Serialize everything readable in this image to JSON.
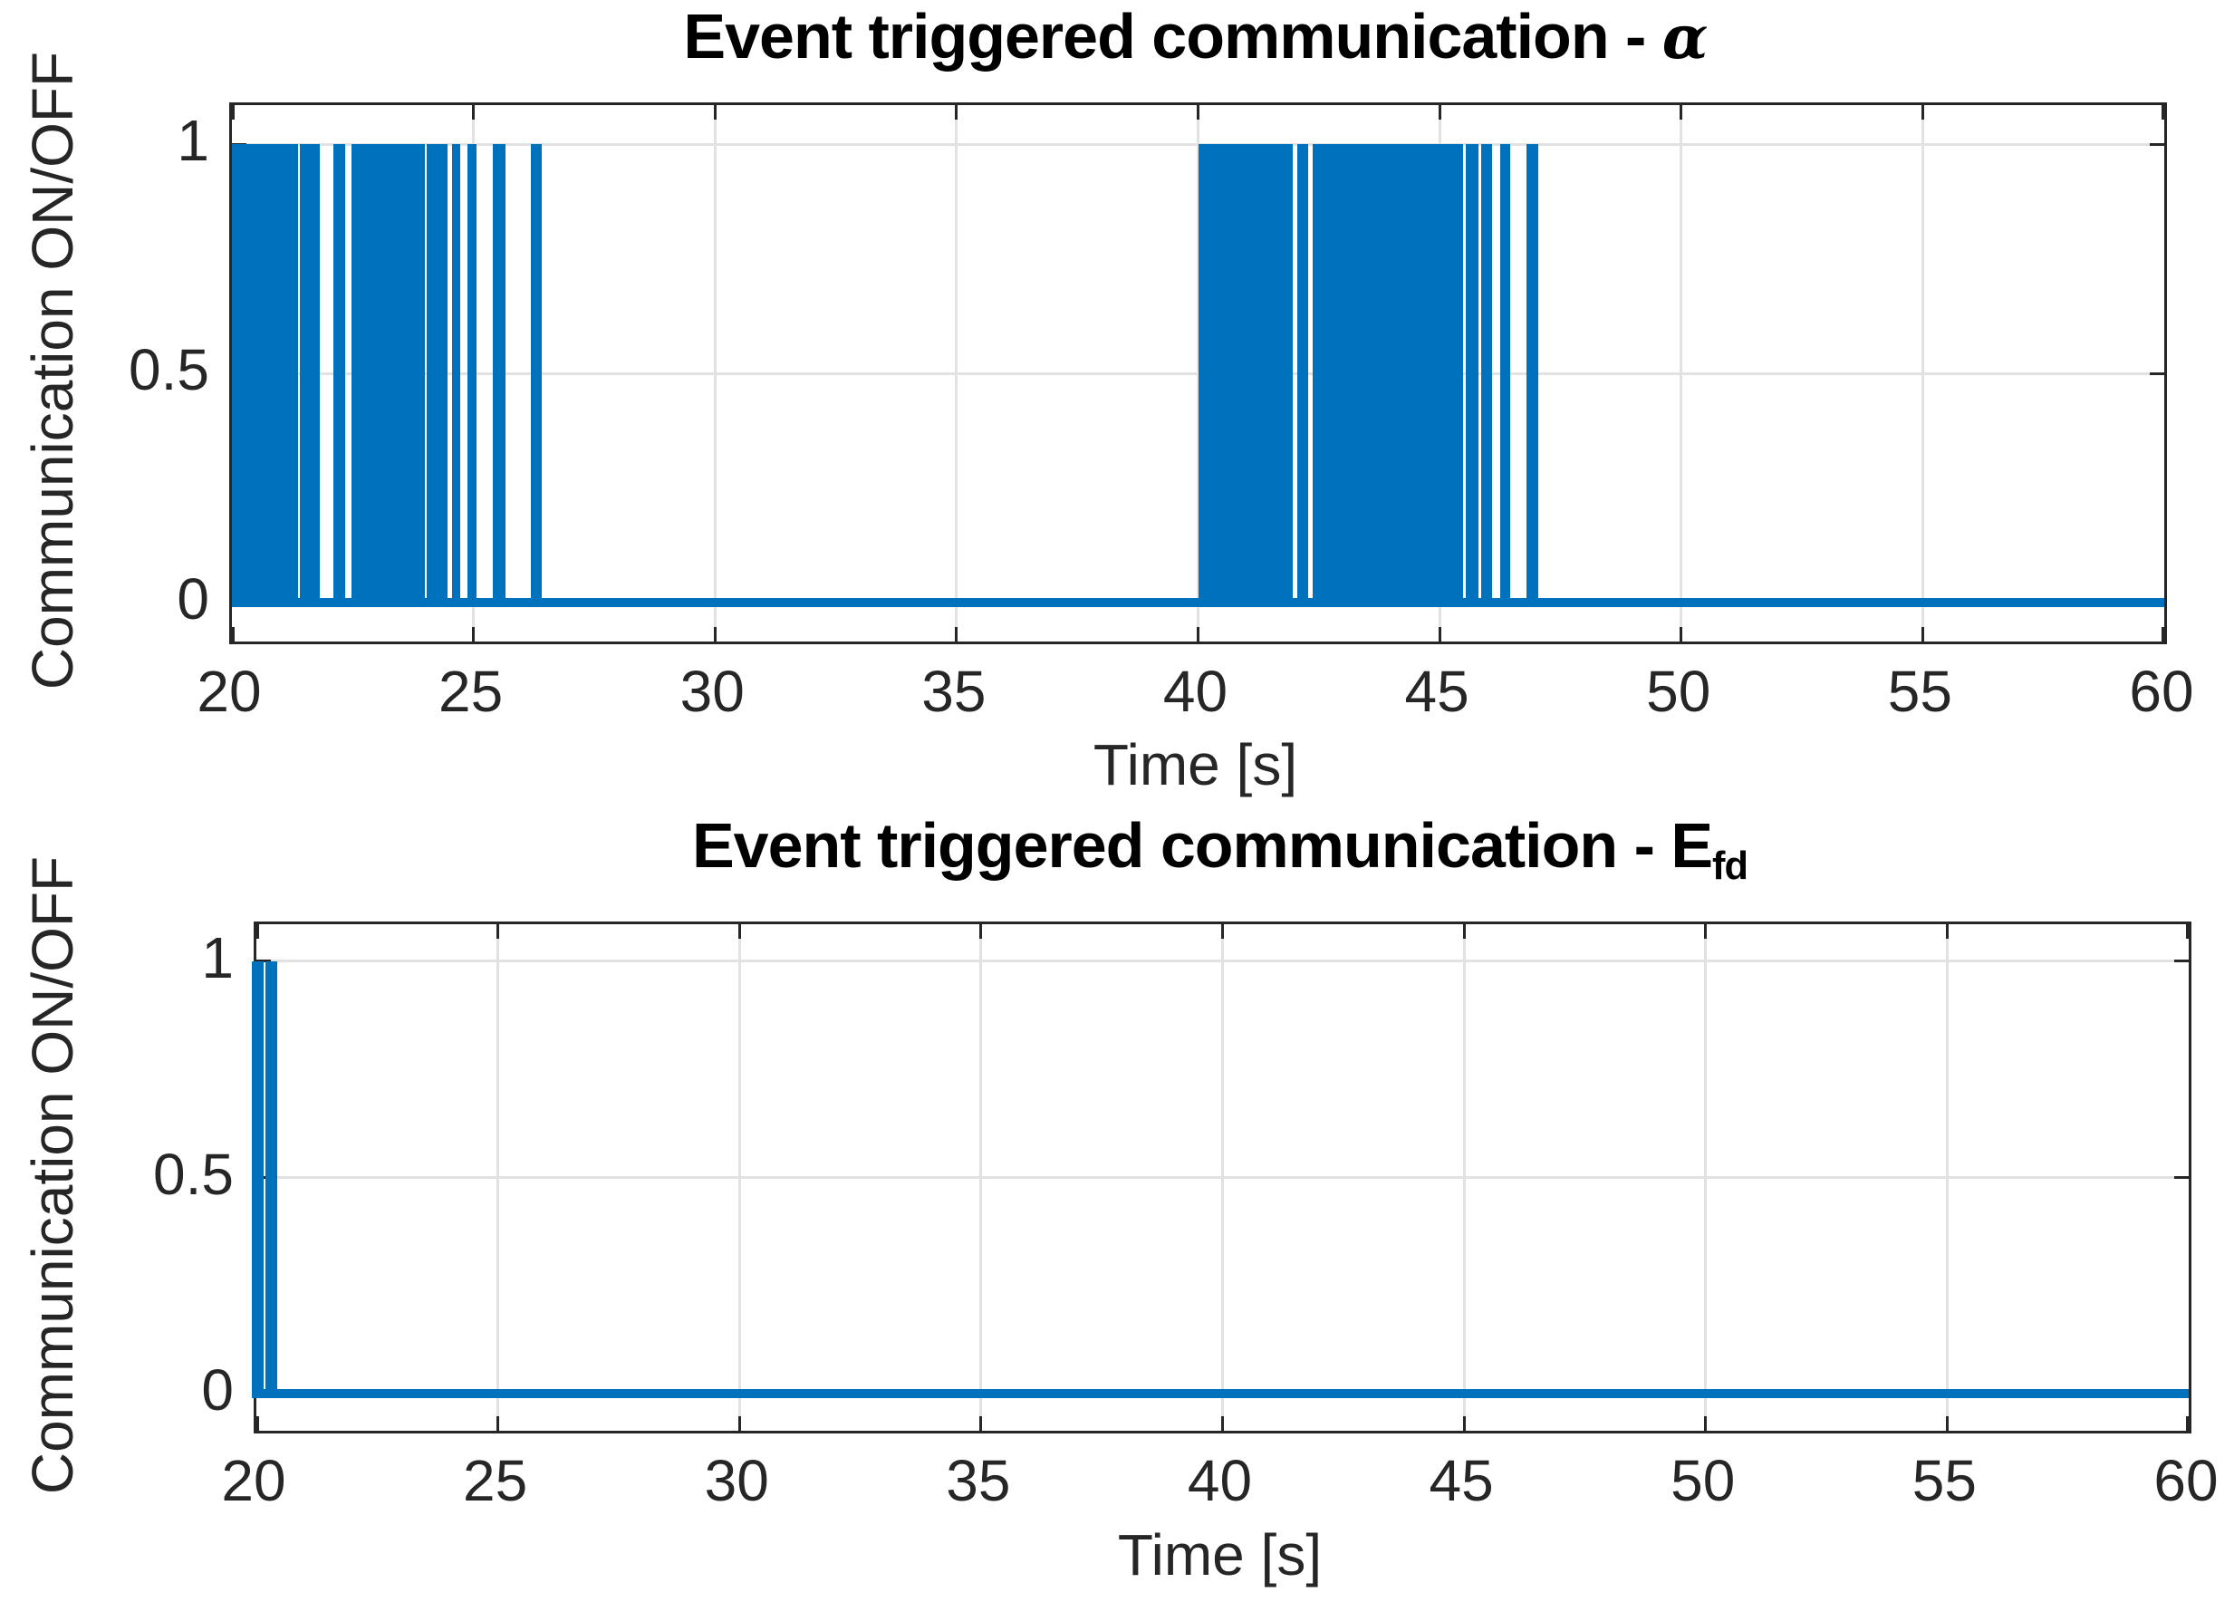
{
  "figure": {
    "background": "#ffffff"
  },
  "colors": {
    "line": "#0072BD",
    "grid": "#e2e2e2",
    "axis": "#262626",
    "tick_text": "#262626",
    "title_text": "#000000"
  },
  "chart_data": [
    {
      "type": "line",
      "subtype": "binary-pulse-train",
      "title": "Event triggered communication - α",
      "title_text": "Event triggered communication - ",
      "title_symbol": "α",
      "xlabel": "Time [s]",
      "ylabel": "Communication ON/OFF",
      "xlim": [
        20,
        60
      ],
      "ylim": [
        -0.085,
        1.085
      ],
      "xticks": [
        20,
        25,
        30,
        35,
        40,
        45,
        50,
        55,
        60
      ],
      "xtick_labels": [
        "20",
        "25",
        "30",
        "35",
        "40",
        "45",
        "50",
        "55",
        "60"
      ],
      "yticks": [
        0,
        0.5,
        1
      ],
      "ytick_labels": [
        "0",
        "0.5",
        "1"
      ],
      "grid": true,
      "value_on": 1,
      "value_off": 0,
      "on_intervals": [
        [
          20.0,
          21.37
        ],
        [
          21.41,
          21.81
        ],
        [
          22.1,
          22.35
        ],
        [
          22.48,
          23.99
        ],
        [
          24.04,
          24.46
        ],
        [
          24.55,
          24.72
        ],
        [
          24.88,
          25.07
        ],
        [
          25.41,
          25.66
        ],
        [
          26.19,
          26.41
        ],
        [
          40.0,
          41.96
        ],
        [
          42.05,
          42.27
        ],
        [
          42.38,
          45.48
        ],
        [
          45.55,
          45.8
        ],
        [
          45.86,
          46.09
        ],
        [
          46.25,
          46.46
        ],
        [
          46.79,
          47.04
        ]
      ]
    },
    {
      "type": "line",
      "subtype": "binary-pulse-train",
      "title": "Event triggered communication - Efd",
      "title_text": "Event triggered communication - E",
      "title_sub": "fd",
      "xlabel": "Time [s]",
      "ylabel": "Communication ON/OFF",
      "xlim": [
        20,
        60
      ],
      "ylim": [
        -0.085,
        1.085
      ],
      "xticks": [
        20,
        25,
        30,
        35,
        40,
        45,
        50,
        55,
        60
      ],
      "xtick_labels": [
        "20",
        "25",
        "30",
        "35",
        "40",
        "45",
        "50",
        "55",
        "60"
      ],
      "yticks": [
        0,
        0.5,
        1
      ],
      "ytick_labels": [
        "0",
        "0.5",
        "1"
      ],
      "grid": true,
      "value_on": 1,
      "value_off": 0,
      "on_intervals": [
        [
          19.91,
          20.15
        ],
        [
          20.19,
          20.43
        ]
      ]
    }
  ]
}
